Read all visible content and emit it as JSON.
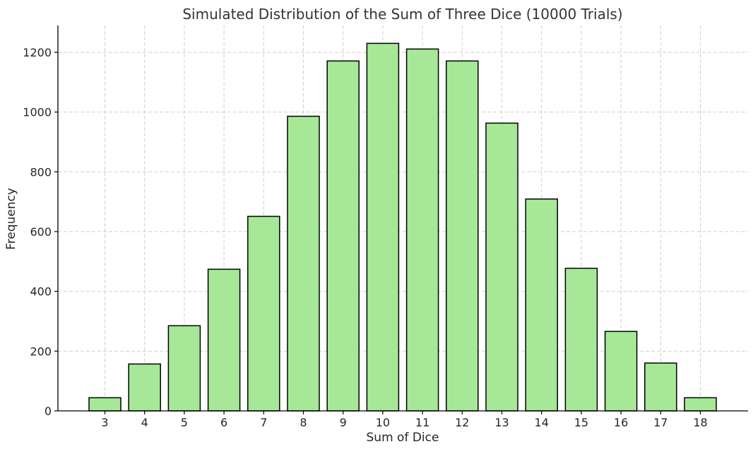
{
  "chart_data": {
    "type": "bar",
    "title": "Simulated Distribution of the Sum of Three Dice (10000 Trials)",
    "xlabel": "Sum of Dice",
    "ylabel": "Frequency",
    "categories": [
      "3",
      "4",
      "5",
      "6",
      "7",
      "8",
      "9",
      "10",
      "11",
      "12",
      "13",
      "14",
      "15",
      "16",
      "17",
      "18"
    ],
    "values": [
      44,
      157,
      285,
      474,
      651,
      986,
      1171,
      1230,
      1211,
      1171,
      963,
      709,
      477,
      266,
      160,
      44
    ],
    "ylim": [
      0,
      1290
    ],
    "yticks": [
      0,
      200,
      400,
      600,
      800,
      1000,
      1200
    ],
    "ytick_labels": [
      "0",
      "200",
      "400",
      "600",
      "800",
      "1000",
      "1200"
    ],
    "grid": true,
    "bar_color": "#a6e898",
    "bar_edge_color": "#000000"
  }
}
